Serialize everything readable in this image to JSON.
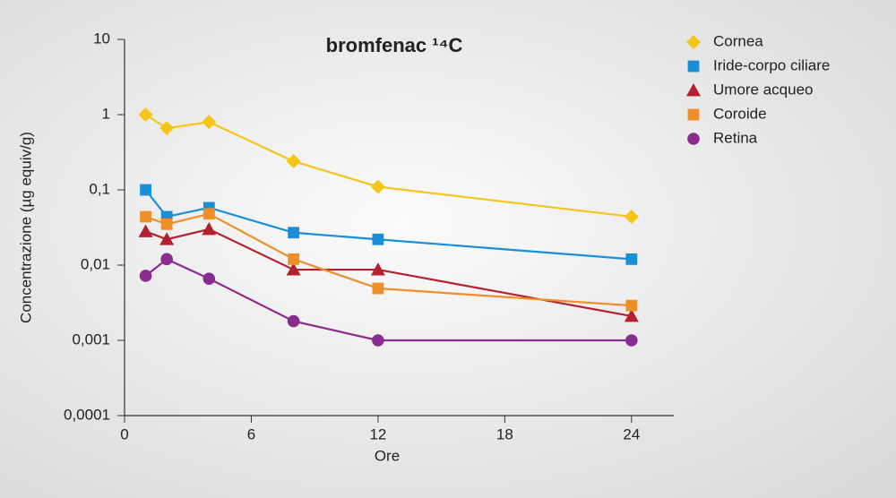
{
  "chart_data": {
    "type": "line",
    "title": "bromfenac ¹⁴C",
    "xlabel": "Ore",
    "ylabel": "Concentrazione (µg equiv/g)",
    "x": [
      1,
      2,
      4,
      8,
      12,
      24
    ],
    "xlim": [
      0,
      26
    ],
    "xticks": [
      0,
      6,
      12,
      18,
      24
    ],
    "ylim": [
      0.0001,
      10
    ],
    "log_y": true,
    "yticks": [
      {
        "value": 0.0001,
        "label": "0,0001"
      },
      {
        "value": 0.001,
        "label": "0,001"
      },
      {
        "value": 0.01,
        "label": "0,01"
      },
      {
        "value": 0.1,
        "label": "0,1"
      },
      1,
      10
    ],
    "series": [
      {
        "name": "Cornea",
        "color": "#f5c518",
        "marker": "diamond",
        "values": [
          1,
          0.66,
          0.8,
          0.24,
          0.11,
          0.044
        ]
      },
      {
        "name": "Iride-corpo ciliare",
        "color": "#1a8fd6",
        "marker": "square",
        "values": [
          0.1,
          0.044,
          0.058,
          0.027,
          0.022,
          0.012
        ]
      },
      {
        "name": "Umore acqueo",
        "color": "#b5202e",
        "marker": "triangle",
        "values": [
          0.028,
          0.022,
          0.03,
          0.0087,
          0.0087,
          0.0021
        ]
      },
      {
        "name": "Coroide",
        "color": "#ee8f2a",
        "marker": "square",
        "values": [
          0.044,
          0.035,
          0.048,
          0.012,
          0.0049,
          0.0029
        ]
      },
      {
        "name": "Retina",
        "color": "#8a2b8f",
        "marker": "circle",
        "values": [
          0.0072,
          0.012,
          0.0066,
          0.0018,
          0.001,
          0.001
        ]
      }
    ]
  }
}
